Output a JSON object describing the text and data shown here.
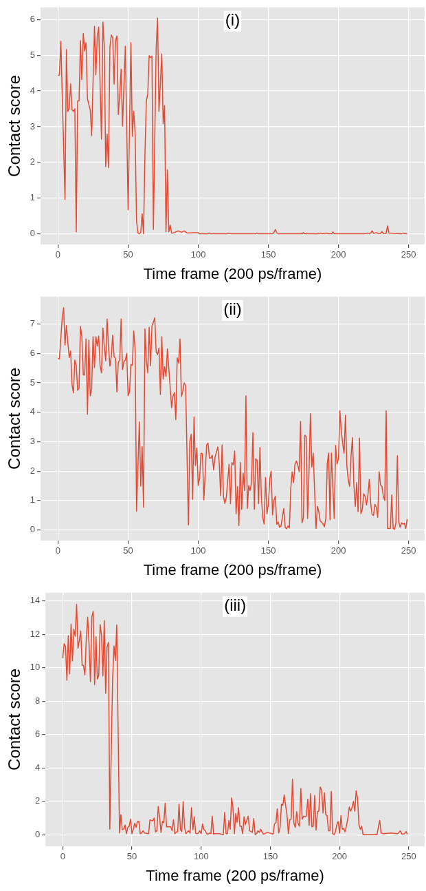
{
  "chart_data": [
    {
      "type": "line",
      "title": "(i)",
      "xlabel": "Time frame (200 ps/frame)",
      "ylabel": "Contact score",
      "xlim": [
        -12.45,
        261.45
      ],
      "xticks": [
        0,
        50,
        100,
        150,
        200,
        250
      ],
      "ylim": [
        -0.3,
        6.34
      ],
      "yticks": [
        0,
        1,
        2,
        3,
        4,
        5,
        6
      ],
      "grid": true,
      "marker": "none",
      "series": [
        {
          "color": "#e24a33",
          "x": [
            0,
            1,
            2,
            5,
            6,
            7,
            8,
            9,
            10,
            11,
            12,
            13,
            14,
            15,
            16,
            17,
            18,
            19,
            20,
            21,
            23,
            24,
            26,
            27,
            28,
            29,
            31,
            32,
            33,
            34,
            35,
            36,
            37,
            38,
            39,
            40,
            41,
            42,
            43,
            44,
            45,
            46,
            48,
            50,
            52,
            53,
            54,
            55,
            56,
            57,
            58,
            59,
            60,
            61,
            62,
            63,
            64,
            65,
            66,
            67,
            68,
            70,
            71,
            72,
            74,
            75,
            76,
            77,
            78,
            79,
            80,
            81,
            82,
            86,
            88,
            90,
            92,
            96,
            100,
            101,
            107,
            108,
            109,
            121,
            122,
            123,
            141,
            142,
            143,
            153,
            154,
            155,
            156,
            157,
            174,
            175,
            176,
            185,
            187,
            189,
            191,
            193,
            195,
            196,
            197,
            218,
            221,
            222,
            223,
            224,
            225,
            227,
            228,
            230,
            231,
            232,
            234,
            235,
            236,
            245,
            246,
            247,
            249
          ],
          "values": [
            4.43,
            4.45,
            5.39,
            0.96,
            5.16,
            3.43,
            3.52,
            4.2,
            3.47,
            3.43,
            3.5,
            0.05,
            3.72,
            3.72,
            5.41,
            4.32,
            5.61,
            5.12,
            5.35,
            3.78,
            3.46,
            2.75,
            5.81,
            4.45,
            5.52,
            5.79,
            2.65,
            5.93,
            5.28,
            1.88,
            2.79,
            1.85,
            5.22,
            5.57,
            5.49,
            4.19,
            5.4,
            5.54,
            3.34,
            3.88,
            4.61,
            3.02,
            5.25,
            0.67,
            5.35,
            2.73,
            3.43,
            2.82,
            0.37,
            0.02,
            0,
            0.04,
            0.56,
            0,
            2.25,
            3.72,
            3.92,
            4.99,
            4.93,
            4.98,
            0.12,
            5.22,
            6.04,
            3.43,
            5.04,
            3.08,
            3.59,
            0.05,
            1.79,
            0.05,
            0.24,
            0.02,
            0.02,
            0.08,
            0.04,
            0.08,
            0.02,
            0.03,
            0.03,
            0,
            0,
            0.02,
            0,
            0,
            0.02,
            0,
            0,
            0.02,
            0,
            0,
            0.04,
            0.12,
            0.02,
            0,
            0,
            0.03,
            0,
            0,
            0.02,
            0,
            0.02,
            0,
            0,
            0.05,
            0,
            0,
            0.02,
            0,
            0.02,
            0.08,
            0.01,
            0.03,
            0.01,
            0.01,
            0.06,
            0.01,
            0.01,
            0.22,
            0.02,
            0,
            0.02,
            0,
            0
          ]
        }
      ]
    },
    {
      "type": "line",
      "title": "(ii)",
      "xlabel": "Time frame (200 ps/frame)",
      "ylabel": "Contact score",
      "xlim": [
        -12.45,
        261.45
      ],
      "xticks": [
        0,
        50,
        100,
        150,
        200,
        250
      ],
      "ylim": [
        -0.36,
        7.93
      ],
      "yticks": [
        0,
        1,
        2,
        3,
        4,
        5,
        6,
        7
      ],
      "grid": true,
      "marker": "none",
      "series": [
        {
          "color": "#e24a33",
          "x": [
            0,
            1,
            3,
            4,
            5,
            6,
            7,
            8,
            9,
            10,
            11,
            12,
            13,
            14,
            15,
            16,
            17,
            18,
            19,
            20,
            21,
            22,
            23,
            24,
            25,
            26,
            27,
            28,
            29,
            30,
            31,
            32,
            33,
            34,
            35,
            36,
            37,
            38,
            39,
            40,
            41,
            42,
            43,
            44,
            45,
            46,
            47,
            48,
            49,
            50,
            51,
            52,
            53,
            54,
            55,
            56,
            58,
            59,
            60,
            61,
            62,
            63,
            64,
            65,
            66,
            67,
            68,
            69,
            70,
            71,
            72,
            73,
            74,
            75,
            76,
            77,
            78,
            79,
            80,
            81,
            82,
            83,
            84,
            85,
            86,
            87,
            88,
            89,
            90,
            91,
            93,
            94,
            95,
            96,
            97,
            98,
            99,
            100,
            101,
            102,
            103,
            104,
            106,
            107,
            108,
            109,
            110,
            111,
            112,
            114,
            115,
            116,
            117,
            118,
            119,
            120,
            122,
            123,
            124,
            125,
            126,
            127,
            128,
            129,
            130,
            131,
            132,
            133,
            134,
            135,
            136,
            137,
            138,
            139,
            140,
            141,
            142,
            143,
            144,
            145,
            146,
            147,
            148,
            149,
            150,
            151,
            152,
            153,
            154,
            155,
            156,
            157,
            158,
            159,
            160,
            161,
            162,
            163,
            164,
            165,
            166,
            167,
            168,
            169,
            170,
            171,
            172,
            173,
            174,
            175,
            176,
            177,
            178,
            179,
            180,
            181,
            182,
            184,
            185,
            186,
            187,
            188,
            189,
            190,
            191,
            192,
            193,
            194,
            195,
            196,
            197,
            198,
            199,
            200,
            201,
            202,
            203,
            204,
            205,
            206,
            207,
            208,
            209,
            210,
            211,
            212,
            213,
            214,
            215,
            216,
            217,
            218,
            219,
            220,
            221,
            222,
            223,
            224,
            225,
            226,
            227,
            228,
            229,
            230,
            231,
            232,
            233,
            234,
            235,
            236,
            237,
            238,
            239,
            240,
            241,
            242,
            243,
            244,
            245,
            246,
            247,
            248,
            249
          ],
          "values": [
            5.83,
            5.81,
            7.21,
            7.55,
            6.28,
            6.95,
            6.38,
            5.86,
            6.08,
            4.94,
            4.66,
            5.77,
            5.6,
            4.75,
            4.81,
            6.92,
            6.57,
            5.27,
            5.27,
            6.49,
            3.93,
            6.45,
            4.56,
            4.79,
            6.57,
            5.52,
            6.57,
            6.25,
            6.59,
            5.58,
            5.34,
            6.86,
            6.23,
            5.75,
            7.17,
            6.23,
            5.57,
            5.89,
            6.62,
            5.89,
            5.83,
            4.69,
            5.7,
            5.77,
            7.17,
            5.45,
            5.73,
            5.77,
            6.0,
            4.56,
            4.7,
            5.62,
            5.6,
            6.76,
            6.15,
            0.64,
            3.67,
            1.49,
            2.83,
            0.77,
            6.83,
            5.77,
            5.34,
            6.89,
            5.58,
            6.93,
            7.06,
            7.21,
            6.05,
            5.96,
            6.19,
            4.6,
            6.57,
            5.13,
            5.55,
            5.22,
            6.15,
            5.51,
            4.83,
            4.16,
            4.54,
            4.67,
            3.75,
            5.85,
            5.67,
            6.49,
            4.54,
            4.71,
            5.0,
            4.9,
            0.17,
            3.01,
            3.25,
            1.04,
            3.84,
            2.19,
            2.78,
            1.51,
            1.78,
            2.61,
            2.59,
            1.02,
            2.89,
            2.95,
            2.44,
            2.44,
            2.54,
            2.04,
            2.48,
            2.82,
            2.25,
            1.17,
            2.89,
            1.13,
            0.9,
            1.1,
            2.23,
            0.89,
            2.29,
            2.21,
            2.68,
            0.55,
            1.48,
            0.15,
            2.29,
            0.7,
            1.93,
            1.34,
            4.56,
            0.73,
            1.51,
            1.34,
            1.61,
            3.31,
            0.7,
            2.42,
            2.36,
            0.89,
            2.8,
            1.15,
            0.43,
            0.2,
            1.78,
            0.55,
            0.87,
            1.72,
            2.0,
            0.51,
            1.0,
            1.15,
            0.19,
            0.27,
            0.09,
            0.13,
            0.43,
            0.73,
            0.09,
            0.04,
            0.13,
            0.07,
            1.42,
            1.98,
            1.61,
            2.23,
            2.34,
            2.21,
            1.98,
            3.69,
            0.24,
            0.43,
            3.22,
            3.17,
            0.39,
            1.98,
            3.95,
            2.14,
            2.61,
            0.05,
            0.8,
            0.62,
            0.3,
            0.27,
            0.2,
            0.11,
            0.39,
            2.25,
            2.61,
            0.34,
            2.61,
            1.42,
            0.39,
            2.87,
            2.25,
            2.42,
            4.05,
            3.37,
            2.93,
            2.61,
            3.9,
            2.17,
            1.7,
            1.48,
            2.54,
            3.14,
            1.53,
            0.8,
            1.61,
            0.62,
            3.12,
            0.55,
            0.7,
            1.23,
            1.15,
            0.85,
            1.19,
            1.72,
            0.89,
            0.52,
            0.49,
            0.87,
            0.77,
            0.43,
            1.98,
            1.53,
            1.48,
            1.15,
            1.0,
            4.05,
            0.05,
            0.05,
            0.05,
            1.19,
            0.05,
            0.02,
            0.24,
            2.52,
            0.27,
            0.09,
            0.24,
            0.2,
            0.22,
            0.05,
            0.37
          ]
        }
      ]
    },
    {
      "type": "line",
      "title": "(iii)",
      "xlabel": "Time frame (200 ps/frame)",
      "ylabel": "Contact score",
      "xlim": [
        -12.45,
        261.45
      ],
      "xticks": [
        0,
        50,
        100,
        150,
        200,
        250
      ],
      "ylim": [
        -0.69,
        14.49
      ],
      "yticks": [
        0,
        2,
        4,
        6,
        8,
        10,
        12,
        14
      ],
      "grid": true,
      "marker": "none",
      "series": [
        {
          "color": "#e24a33",
          "x": [
            0,
            1,
            2,
            3,
            4,
            5,
            6,
            7,
            8,
            9,
            10,
            11,
            12,
            13,
            14,
            15,
            16,
            17,
            18,
            19,
            20,
            21,
            22,
            23,
            24,
            25,
            26,
            27,
            28,
            29,
            30,
            31,
            32,
            33,
            34,
            36,
            37,
            38,
            39,
            41,
            42,
            43,
            44,
            45,
            46,
            47,
            48,
            49,
            50,
            51,
            52,
            53,
            54,
            55,
            56,
            57,
            58,
            59,
            62,
            63,
            64,
            65,
            66,
            67,
            68,
            69,
            70,
            71,
            72,
            73,
            74,
            75,
            76,
            77,
            78,
            79,
            80,
            81,
            82,
            83,
            84,
            85,
            86,
            87,
            88,
            89,
            90,
            91,
            92,
            93,
            94,
            95,
            96,
            97,
            98,
            99,
            100,
            101,
            102,
            103,
            104,
            105,
            106,
            107,
            108,
            109,
            110,
            113,
            116,
            117,
            118,
            119,
            120,
            121,
            122,
            123,
            124,
            125,
            126,
            127,
            128,
            129,
            130,
            131,
            132,
            133,
            134,
            135,
            136,
            137,
            138,
            139,
            140,
            141,
            142,
            143,
            144,
            145,
            148,
            152,
            153,
            154,
            155,
            156,
            157,
            158,
            159,
            160,
            161,
            162,
            163,
            164,
            165,
            166,
            167,
            168,
            169,
            170,
            171,
            172,
            173,
            174,
            175,
            176,
            177,
            178,
            179,
            180,
            181,
            182,
            183,
            184,
            185,
            186,
            187,
            188,
            189,
            190,
            191,
            192,
            193,
            194,
            195,
            196,
            197,
            198,
            199,
            200,
            201,
            202,
            203,
            204,
            205,
            206,
            207,
            208,
            209,
            210,
            211,
            212,
            213,
            214,
            215,
            216,
            217,
            227,
            228,
            229,
            230,
            232,
            237,
            242,
            244,
            245,
            247,
            248,
            249
          ],
          "values": [
            10.57,
            11.44,
            11.26,
            9.25,
            11.92,
            9.64,
            12.61,
            10.4,
            12.31,
            11.88,
            13.79,
            11.16,
            11.65,
            12.2,
            10.15,
            10.12,
            9.57,
            11.72,
            13.03,
            11.37,
            9.16,
            13.03,
            13.37,
            8.99,
            11.85,
            9.32,
            9.54,
            12.59,
            11.92,
            9.5,
            12.82,
            8.46,
            11.23,
            11.51,
            0.33,
            9.27,
            11.3,
            10.43,
            12.55,
            0.1,
            1.2,
            0.3,
            0.33,
            0.58,
            0.06,
            0.44,
            0.51,
            0.93,
            0.06,
            0.33,
            0.69,
            0.44,
            0.79,
            0.79,
            0.06,
            0.1,
            0.24,
            0.1,
            0.06,
            0.89,
            0.86,
            0.83,
            1.0,
            0.17,
            0.24,
            1.69,
            1.0,
            0.14,
            0.79,
            0.72,
            1.89,
            0.47,
            0.47,
            0.47,
            0.47,
            0.24,
            0.9,
            0.06,
            0.17,
            0.17,
            1.83,
            0.3,
            0.19,
            1.99,
            0.44,
            0.06,
            0.17,
            0.24,
            0.1,
            1.62,
            0.3,
            1.07,
            0.1,
            0.06,
            0.1,
            0.24,
            0.06,
            0.65,
            0.3,
            0.24,
            0.06,
            0.03,
            0.1,
            0.06,
            1.11,
            0.03,
            0.06,
            0.06,
            0,
            1.34,
            0.06,
            0.06,
            0.86,
            0.33,
            2.21,
            1.62,
            0.06,
            1.27,
            0.75,
            1.62,
            0.51,
            0.51,
            0.06,
            1.07,
            0.61,
            0.86,
            1.11,
            0.24,
            0.19,
            0.14,
            0.97,
            0,
            0.06,
            0.24,
            0.14,
            0.33,
            0.17,
            0.03,
            0.14,
            0.03,
            0.65,
            0.72,
            1.55,
            0.1,
            0.44,
            1.83,
            1.76,
            2.38,
            1.76,
            1.2,
            0.06,
            0.89,
            0.93,
            3.32,
            0.69,
            0.44,
            1.38,
            0.69,
            0.51,
            2.77,
            0.93,
            1.11,
            1.07,
            1.11,
            2.13,
            0.55,
            2.45,
            0.47,
            0.51,
            2.35,
            0.28,
            1.38,
            1.41,
            2.86,
            2.68,
            1.3,
            2.52,
            1.2,
            1.13,
            0.24,
            0.24,
            2.59,
            0.06,
            0,
            0.17,
            0.61,
            0.79,
            0.1,
            1.13,
            0.33,
            0.37,
            0.17,
            0.55,
            1.0,
            1.66,
            1.41,
            1.62,
            1.99,
            1.41,
            2.63,
            2.17,
            0.58,
            0.33,
            0.51,
            0,
            0,
            0.44,
            0.86,
            0.1,
            0.06,
            0.1,
            0.06,
            0.24,
            0.03,
            0.06,
            0.19,
            0.03
          ]
        }
      ]
    }
  ]
}
